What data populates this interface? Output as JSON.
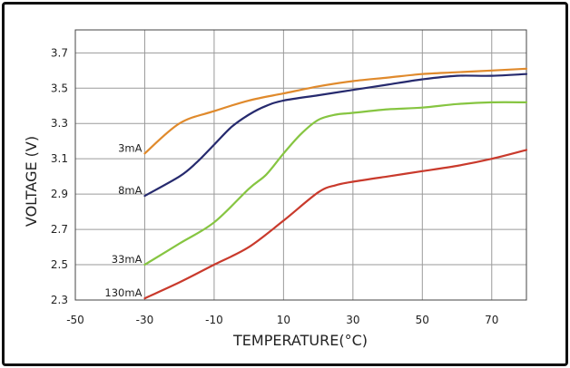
{
  "chart_data": {
    "type": "line",
    "title": "",
    "xlabel": "TEMPERATURE(°C)",
    "ylabel": "VOLTAGE (V)",
    "xlim": [
      -50,
      80
    ],
    "ylim": [
      2.3,
      3.83
    ],
    "x_ticks": [
      -50,
      -30,
      -10,
      10,
      30,
      50,
      70
    ],
    "y_ticks": [
      2.3,
      2.5,
      2.7,
      2.9,
      3.1,
      3.3,
      3.5,
      3.7
    ],
    "x_tick_labels": [
      "-50",
      "-30",
      "-10",
      "10",
      "30",
      "50",
      "70"
    ],
    "y_tick_labels": [
      "2.3",
      "2.5",
      "2.7",
      "2.9",
      "3.1",
      "3.3",
      "3.5",
      "3.7"
    ],
    "grid": true,
    "series": [
      {
        "name": "3mA",
        "color": "#e08a2c",
        "points": [
          [
            -30,
            3.13
          ],
          [
            -20,
            3.3
          ],
          [
            -10,
            3.37
          ],
          [
            0,
            3.43
          ],
          [
            10,
            3.47
          ],
          [
            20,
            3.51
          ],
          [
            30,
            3.54
          ],
          [
            40,
            3.56
          ],
          [
            50,
            3.58
          ],
          [
            60,
            3.59
          ],
          [
            70,
            3.6
          ],
          [
            80,
            3.61
          ]
        ]
      },
      {
        "name": "8mA",
        "color": "#262a6e",
        "points": [
          [
            -30,
            2.89
          ],
          [
            -20,
            3.0
          ],
          [
            -15,
            3.08
          ],
          [
            -10,
            3.18
          ],
          [
            -5,
            3.28
          ],
          [
            0,
            3.35
          ],
          [
            5,
            3.4
          ],
          [
            10,
            3.43
          ],
          [
            20,
            3.46
          ],
          [
            30,
            3.49
          ],
          [
            40,
            3.52
          ],
          [
            50,
            3.55
          ],
          [
            60,
            3.57
          ],
          [
            70,
            3.57
          ],
          [
            80,
            3.58
          ]
        ]
      },
      {
        "name": "33mA",
        "color": "#86c541",
        "points": [
          [
            -30,
            2.5
          ],
          [
            -20,
            2.62
          ],
          [
            -10,
            2.74
          ],
          [
            0,
            2.93
          ],
          [
            5,
            3.01
          ],
          [
            10,
            3.13
          ],
          [
            15,
            3.24
          ],
          [
            20,
            3.32
          ],
          [
            25,
            3.35
          ],
          [
            30,
            3.36
          ],
          [
            40,
            3.38
          ],
          [
            50,
            3.39
          ],
          [
            60,
            3.41
          ],
          [
            70,
            3.42
          ],
          [
            80,
            3.42
          ]
        ]
      },
      {
        "name": "130mA",
        "color": "#c93a2c",
        "points": [
          [
            -30,
            2.31
          ],
          [
            -20,
            2.4
          ],
          [
            -10,
            2.5
          ],
          [
            0,
            2.6
          ],
          [
            10,
            2.75
          ],
          [
            20,
            2.91
          ],
          [
            25,
            2.95
          ],
          [
            30,
            2.97
          ],
          [
            40,
            3.0
          ],
          [
            50,
            3.03
          ],
          [
            60,
            3.06
          ],
          [
            70,
            3.1
          ],
          [
            80,
            3.15
          ]
        ]
      }
    ]
  }
}
